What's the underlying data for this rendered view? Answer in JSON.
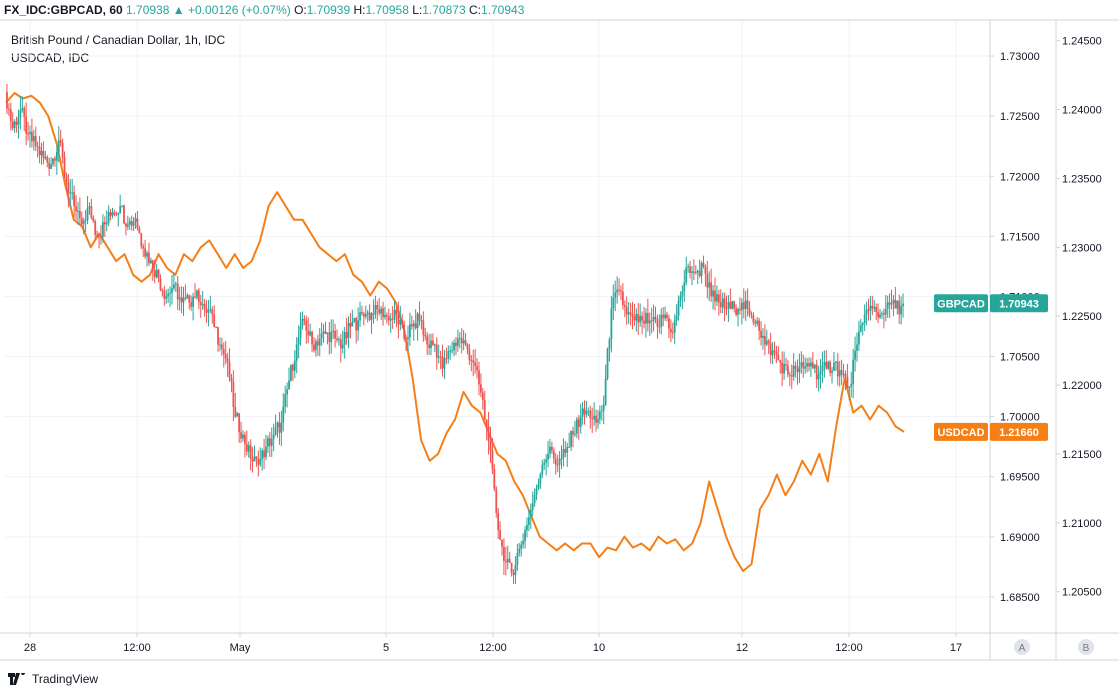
{
  "header": {
    "symbol": "FX_IDC:GBPCAD, 60",
    "last": "1.70938",
    "arrow": "▲",
    "change": "+0.00126 (+0.07%)",
    "o_label": "O:",
    "o_value": "1.70939",
    "h_label": "H:",
    "h_value": "1.70958",
    "l_label": "L:",
    "l_value": "1.70873",
    "c_label": "C:",
    "c_value": "1.70943"
  },
  "titles": {
    "main": "British Pound / Canadian Dollar, 1h, IDC",
    "compare": "USDCAD, IDC"
  },
  "badges": {
    "gbpcad_name": "GBPCAD",
    "gbpcad_value": "1.70943",
    "usdcad_name": "USDCAD",
    "usdcad_value": "1.21660"
  },
  "axis_buttons": {
    "a": "A",
    "b": "B"
  },
  "brand": {
    "name": "TradingView"
  },
  "colors": {
    "gbpcad": "#26a69a",
    "up": "#26a69a",
    "down": "#ef5350",
    "usdcad": "#f57f17",
    "grid": "#f0f3fa",
    "axis": "#d1d4dc",
    "text": "#131722"
  },
  "chart_data": {
    "type": "line",
    "grid": true,
    "x_ticks": [
      "28",
      "12:00",
      "May",
      "5",
      "12:00",
      "10",
      "12",
      "12:00",
      "17"
    ],
    "right_axis_gbpcad": {
      "ticks": [
        "1.73000",
        "1.72500",
        "1.72000",
        "1.71500",
        "1.71000",
        "1.70500",
        "1.70000",
        "1.69500",
        "1.69000",
        "1.68500"
      ],
      "ylim": [
        1.682,
        1.733
      ]
    },
    "right_axis_usdcad": {
      "ticks": [
        "1.24500",
        "1.24000",
        "1.23500",
        "1.23000",
        "1.22500",
        "1.22000",
        "1.21500",
        "1.21000",
        "1.20500"
      ],
      "ylim": [
        1.202,
        1.2465
      ]
    },
    "series": [
      {
        "name": "GBPCAD",
        "style": "candles",
        "values": [
          1.727,
          1.724,
          1.7255,
          1.7235,
          1.7225,
          1.7215,
          1.721,
          1.723,
          1.7195,
          1.7175,
          1.716,
          1.7175,
          1.715,
          1.716,
          1.717,
          1.7175,
          1.716,
          1.7165,
          1.714,
          1.713,
          1.7115,
          1.71,
          1.711,
          1.7095,
          1.7095,
          1.7105,
          1.709,
          1.7085,
          1.706,
          1.7045,
          1.7,
          1.6985,
          1.6965,
          1.696,
          1.6975,
          1.6985,
          1.6995,
          1.703,
          1.706,
          1.708,
          1.706,
          1.7065,
          1.707,
          1.7065,
          1.706,
          1.7075,
          1.708,
          1.7085,
          1.7085,
          1.709,
          1.708,
          1.7085,
          1.7065,
          1.7075,
          1.708,
          1.706,
          1.706,
          1.704,
          1.7055,
          1.7065,
          1.706,
          1.7045,
          1.702,
          1.698,
          1.692,
          1.688,
          1.687,
          1.689,
          1.691,
          1.6935,
          1.696,
          1.6975,
          1.696,
          1.697,
          1.6985,
          1.7,
          1.7005,
          1.6995,
          1.701,
          1.709,
          1.7105,
          1.7085,
          1.708,
          1.708,
          1.708,
          1.7075,
          1.7085,
          1.707,
          1.71,
          1.7125,
          1.712,
          1.7125,
          1.71,
          1.7095,
          1.709,
          1.709,
          1.7095,
          1.7085,
          1.708,
          1.706,
          1.7055,
          1.7045,
          1.7035,
          1.704,
          1.704,
          1.7045,
          1.7035,
          1.704,
          1.7045,
          1.7035,
          1.7025,
          1.706,
          1.7085,
          1.709,
          1.7085,
          1.7095,
          1.709,
          1.7094
        ]
      },
      {
        "name": "USDCAD",
        "style": "line",
        "values": [
          1.2405,
          1.2412,
          1.2408,
          1.241,
          1.2405,
          1.2395,
          1.2375,
          1.2345,
          1.232,
          1.2315,
          1.23,
          1.231,
          1.23,
          1.229,
          1.2295,
          1.228,
          1.2275,
          1.228,
          1.2295,
          1.2285,
          1.228,
          1.2295,
          1.229,
          1.23,
          1.2305,
          1.2295,
          1.2285,
          1.2295,
          1.2285,
          1.229,
          1.2305,
          1.233,
          1.234,
          1.233,
          1.232,
          1.232,
          1.231,
          1.23,
          1.2295,
          1.229,
          1.2295,
          1.228,
          1.2275,
          1.2265,
          1.2275,
          1.227,
          1.226,
          1.224,
          1.2205,
          1.216,
          1.2145,
          1.215,
          1.2165,
          1.2175,
          1.2195,
          1.2185,
          1.218,
          1.2165,
          1.215,
          1.2145,
          1.213,
          1.212,
          1.2105,
          1.209,
          1.2085,
          1.208,
          1.2085,
          1.208,
          1.2085,
          1.2085,
          1.2075,
          1.2082,
          1.208,
          1.209,
          1.2082,
          1.2085,
          1.208,
          1.209,
          1.2085,
          1.2088,
          1.208,
          1.2085,
          1.21,
          1.213,
          1.211,
          1.209,
          1.2075,
          1.2065,
          1.207,
          1.211,
          1.212,
          1.2135,
          1.212,
          1.213,
          1.2145,
          1.2135,
          1.215,
          1.213,
          1.217,
          1.2205,
          1.218,
          1.2185,
          1.2175,
          1.2185,
          1.218,
          1.217,
          1.2166
        ]
      }
    ]
  }
}
